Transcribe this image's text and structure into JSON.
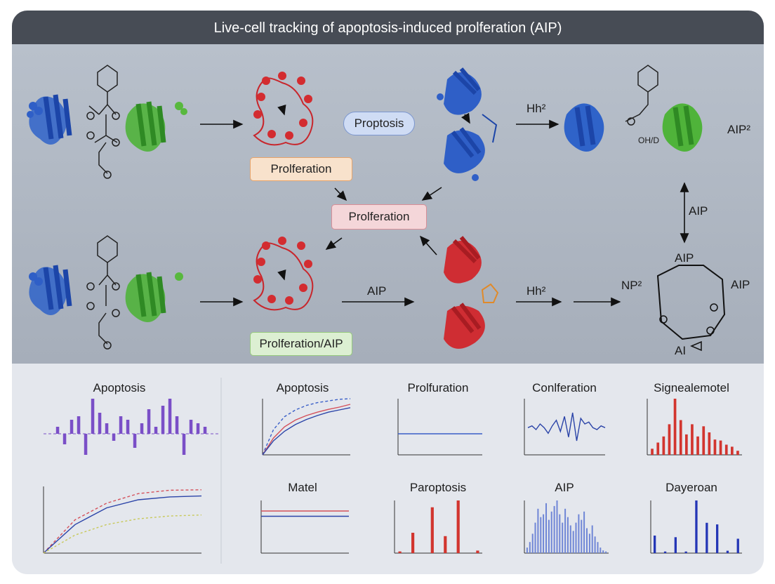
{
  "title": "Live-cell tracking of apoptosis-induced prolferation (AIP)",
  "diagram": {
    "boxes": {
      "proptosis": "Proptosis",
      "prolferation_orange": "Prolferation",
      "prolferation_center": "Prolferation",
      "prolferation_aip": "Prolferation/AIP"
    },
    "labels": {
      "hh_top": "Hh²",
      "aip_sup": "AIP²",
      "aip_vertical": "AIP",
      "aip_ring_top": "AIP",
      "aip_ring_right": "AIP",
      "np2": "NP²",
      "ai": "AI",
      "aip_arrow": "AIP",
      "hh_bottom": "Hh²",
      "molecule_label": "OH/D"
    }
  },
  "panels": [
    {
      "title": "Apoptosis"
    },
    {
      "title": "Apoptosis"
    },
    {
      "title": "Prolfuration"
    },
    {
      "title": "Conlferation"
    },
    {
      "title": "Signealemotel"
    },
    {
      "title": "Matel"
    },
    {
      "title": "Paroptosis"
    },
    {
      "title": "AIP"
    },
    {
      "title": "Dayeroan"
    }
  ],
  "chart_data": [
    {
      "type": "bar",
      "title": "Apoptosis",
      "values": [
        0.2,
        -0.3,
        0.4,
        0.5,
        -0.6,
        1.0,
        0.6,
        0.3,
        -0.2,
        0.5,
        0.4,
        -0.4,
        0.3,
        0.7,
        0.2,
        0.8,
        1.0,
        0.5,
        -0.6,
        0.4,
        0.3,
        0.2
      ]
    },
    {
      "type": "line",
      "title": "Apoptosis",
      "x": [
        0,
        2.5,
        5,
        7.5,
        10,
        12.5,
        15,
        17.5,
        20
      ],
      "series": [
        {
          "values": [
            0,
            45,
            68,
            80,
            88,
            93,
            96,
            99,
            100
          ]
        },
        {
          "values": [
            0,
            30,
            50,
            62,
            70,
            76,
            81,
            85,
            90
          ]
        },
        {
          "values": [
            0,
            25,
            42,
            54,
            63,
            70,
            76,
            80,
            84
          ]
        }
      ],
      "xlim": [
        0,
        20
      ],
      "ylim": [
        0,
        100
      ]
    },
    {
      "type": "line",
      "title": "Prolfuration",
      "x": [
        0,
        1,
        2,
        3,
        4,
        5,
        6,
        7,
        8
      ],
      "series": [
        {
          "values": [
            3,
            3,
            3,
            3,
            3,
            3,
            3,
            3,
            3
          ]
        }
      ],
      "ylim": [
        0,
        8
      ]
    },
    {
      "type": "line",
      "title": "Conlferation",
      "series": [
        {
          "values": [
            0,
            0.1,
            -0.1,
            0.2,
            0,
            -0.3,
            0.1,
            0.4,
            -0.2,
            0.6,
            -0.5,
            0.8,
            -0.7,
            0.5,
            0.2,
            0.3,
            0,
            -0.1,
            0.1,
            0
          ]
        }
      ]
    },
    {
      "type": "bar",
      "title": "Signealemotel",
      "values": [
        6,
        12,
        18,
        30,
        55,
        34,
        20,
        30,
        18,
        28,
        22,
        15,
        14,
        10,
        8,
        4
      ]
    },
    {
      "type": "line",
      "title": "",
      "x": [
        0,
        2,
        4,
        6,
        8,
        10
      ],
      "series": [
        {
          "values": [
            0,
            70,
            105,
            125,
            132,
            133
          ]
        },
        {
          "values": [
            0,
            60,
            95,
            112,
            118,
            120
          ]
        },
        {
          "values": [
            0,
            38,
            60,
            72,
            78,
            80
          ]
        }
      ],
      "xlim": [
        0,
        10
      ],
      "ylim": [
        0,
        140
      ]
    },
    {
      "type": "line",
      "title": "Matel",
      "series": [
        {
          "values": [
            8,
            8,
            8,
            8,
            8
          ]
        },
        {
          "values": [
            7,
            7,
            7,
            7,
            7
          ]
        }
      ],
      "ylim": [
        0,
        10
      ]
    },
    {
      "type": "bar",
      "title": "Paroptosis",
      "values": [
        2,
        0,
        24,
        0,
        0,
        54,
        0,
        20,
        0,
        62,
        0,
        0,
        3
      ]
    },
    {
      "type": "bar",
      "title": "AIP",
      "values": [
        10,
        20,
        35,
        55,
        80,
        65,
        70,
        90,
        60,
        75,
        85,
        95,
        70,
        55,
        80,
        65,
        50,
        40,
        55,
        70,
        60,
        75,
        45,
        35,
        50,
        30,
        20,
        10,
        5,
        3
      ]
    },
    {
      "type": "bar",
      "title": "Dayeroan",
      "values": [
        22,
        0,
        2,
        0,
        20,
        0,
        2,
        0,
        66,
        0,
        38,
        0,
        36,
        0,
        3,
        0,
        18
      ]
    }
  ]
}
